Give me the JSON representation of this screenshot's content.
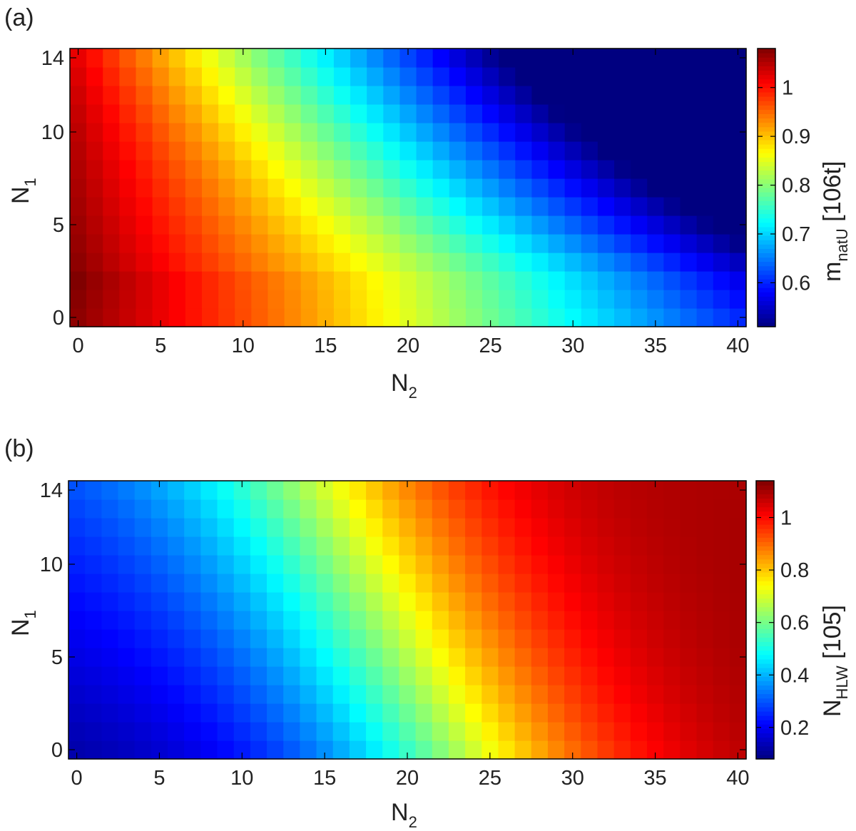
{
  "chart_data": [
    {
      "type": "heatmap",
      "panel_label": "(a)",
      "xlabel": {
        "main": "N",
        "sub": "2"
      },
      "ylabel": {
        "main": "N",
        "sub": "1"
      },
      "colorbar_label": {
        "main": "m",
        "sub": "natU",
        "rest": " [106t]"
      },
      "xlim": [
        0,
        40
      ],
      "ylim": [
        0,
        14
      ],
      "x_ticks": [
        0,
        5,
        10,
        15,
        20,
        25,
        30,
        35,
        40
      ],
      "y_ticks": [
        0,
        5,
        10,
        14
      ],
      "clim": [
        0.51,
        1.08
      ],
      "colorbar_ticks": [
        0.6,
        0.7,
        0.8,
        0.9,
        1
      ],
      "colormap": "jet",
      "grid": "x = 0..40 by 1 (N2), y = 0..14 by 1 (N1)",
      "value_model": {
        "description": "approximate field read from colors: value = 1.08 - 0.000325*(N2 - (19.5 - 2.2*|N1 - 3|))^2 clipped at peak, smooth falloff",
        "corner_values": {
          "N1=0,N2=0": 1.07,
          "N1=14,N2=0": 0.95,
          "N1=0,N2=40": 0.68,
          "N1=14,N2=40": 0.52,
          "N1=5,N2=20": 0.87
        }
      }
    },
    {
      "type": "heatmap",
      "panel_label": "(b)",
      "xlabel": {
        "main": "N",
        "sub": "2"
      },
      "ylabel": {
        "main": "N",
        "sub": "1"
      },
      "colorbar_label": {
        "main": "N",
        "sub": "HLW",
        "rest": " [105]"
      },
      "xlim": [
        0,
        40
      ],
      "ylim": [
        0,
        14
      ],
      "x_ticks": [
        0,
        5,
        10,
        15,
        20,
        25,
        30,
        35,
        40
      ],
      "y_ticks": [
        0,
        5,
        10,
        14
      ],
      "clim": [
        0.08,
        1.14
      ],
      "colorbar_ticks": [
        0.2,
        0.4,
        0.6,
        0.8,
        1
      ],
      "colormap": "jet",
      "grid": "x = 0..40 by 1 (N2), y = 0..14 by 1 (N1)",
      "value_model": {
        "description": "approximate field read from colors: increases with N2, boundary bends left with increasing N1",
        "corner_values": {
          "N1=0,N2=0": 0.09,
          "N1=14,N2=0": 0.42,
          "N1=0,N2=40": 1.04,
          "N1=14,N2=40": 1.12,
          "N1=7,N2=20": 0.62
        }
      }
    }
  ]
}
